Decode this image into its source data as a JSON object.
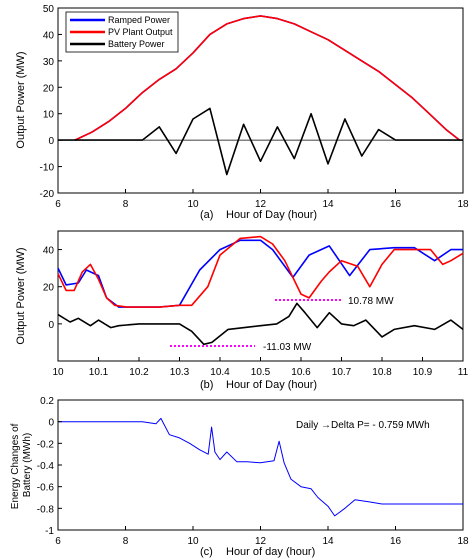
{
  "figure": {
    "caption_a": "(a)",
    "caption_b": "(b)",
    "caption_c": "(c)"
  },
  "chart_data": [
    {
      "id": "a",
      "type": "line",
      "xlabel": "Hour of Day (hour)",
      "ylabel": "Output Power (MW)",
      "xlim": [
        6,
        18
      ],
      "ylim": [
        -20,
        50
      ],
      "xticks": [
        6,
        8,
        10,
        12,
        14,
        16,
        18
      ],
      "xtick_labels": [
        "6",
        "8",
        "10",
        "12",
        "14",
        "16",
        "18"
      ],
      "yticks": [
        -20,
        -10,
        0,
        10,
        20,
        30,
        40,
        50
      ],
      "legend_position": "top-left",
      "grid": false,
      "series": [
        {
          "name": "Ramped Power",
          "color": "#0000ff",
          "x": [
            6.5,
            7,
            7.5,
            8,
            8.5,
            9,
            9.5,
            10,
            10.5,
            11,
            11.5,
            12,
            12.5,
            13,
            13.5,
            14,
            14.5,
            15,
            15.5,
            16,
            16.5,
            17,
            17.5,
            17.9
          ],
          "y": [
            0,
            3,
            7,
            12,
            18,
            23,
            27,
            33,
            40,
            44,
            46,
            47,
            46,
            44,
            41,
            38,
            34,
            30,
            26,
            21,
            16,
            10,
            4,
            0
          ]
        },
        {
          "name": "PV Plant Output",
          "color": "#ff0000",
          "x": [
            6.5,
            7,
            7.5,
            8,
            8.5,
            9,
            9.5,
            10,
            10.5,
            11,
            11.5,
            12,
            12.5,
            13,
            13.5,
            14,
            14.5,
            15,
            15.5,
            16,
            16.5,
            17,
            17.5,
            17.9
          ],
          "y": [
            0,
            3,
            7,
            12,
            18,
            23,
            27,
            33,
            40,
            44,
            46,
            47,
            46,
            44,
            41,
            38,
            34,
            30,
            26,
            21,
            16,
            10,
            4,
            0
          ]
        },
        {
          "name": "Battery Power",
          "color": "#000000",
          "x": [
            6,
            8.5,
            9,
            9.5,
            10,
            10.5,
            11,
            11.5,
            12,
            12.5,
            13,
            13.5,
            14,
            14.5,
            15,
            15.5,
            16,
            18
          ],
          "y": [
            0,
            0,
            5,
            -5,
            8,
            12,
            -13,
            6,
            -8,
            5,
            -7,
            10,
            -9,
            8,
            -6,
            4,
            0,
            0
          ]
        }
      ]
    },
    {
      "id": "b",
      "type": "line",
      "xlabel": "Hour of Day (hour)",
      "ylabel": "Output Power (MW)",
      "xlim": [
        10,
        11
      ],
      "ylim": [
        -20,
        50
      ],
      "xticks": [
        10,
        10.1,
        10.2,
        10.3,
        10.4,
        10.5,
        10.6,
        10.7,
        10.8,
        10.9,
        11
      ],
      "xtick_labels": [
        "10",
        "10.1",
        "10.2",
        "10.3",
        "10.4",
        "10.5",
        "10.6",
        "10.7",
        "10.8",
        "10.9",
        "11"
      ],
      "yticks": [
        0,
        20,
        40
      ],
      "grid": false,
      "annotations": [
        {
          "text": "10.78 MW",
          "x": 10.55,
          "y": 10.78
        },
        {
          "text": "-11.03 MW",
          "x": 10.37,
          "y": -11.03
        }
      ],
      "series": [
        {
          "color": "#0000ff",
          "x": [
            10,
            10.02,
            10.05,
            10.07,
            10.1,
            10.12,
            10.15,
            10.2,
            10.25,
            10.3,
            10.35,
            10.4,
            10.45,
            10.5,
            10.53,
            10.58,
            10.62,
            10.67,
            10.72,
            10.77,
            10.83,
            10.88,
            10.93,
            10.97,
            11
          ],
          "y": [
            30,
            21,
            22,
            29,
            26,
            14,
            9,
            9,
            9,
            10,
            29,
            40,
            45,
            45,
            40,
            25,
            37,
            42,
            26,
            40,
            41,
            41,
            34,
            40,
            40
          ]
        },
        {
          "color": "#ff0000",
          "x": [
            10,
            10.02,
            10.04,
            10.06,
            10.08,
            10.1,
            10.12,
            10.14,
            10.17,
            10.2,
            10.25,
            10.3,
            10.33,
            10.37,
            10.4,
            10.45,
            10.5,
            10.53,
            10.56,
            10.6,
            10.62,
            10.65,
            10.67,
            10.7,
            10.74,
            10.77,
            10.8,
            10.83,
            10.88,
            10.92,
            10.95,
            10.97,
            11
          ],
          "y": [
            27,
            18,
            18,
            28,
            32,
            24,
            14,
            10,
            9,
            9,
            9,
            10,
            10,
            20,
            37,
            46,
            47,
            43,
            34,
            16,
            14,
            23,
            28,
            34,
            31,
            20,
            32,
            40,
            40,
            40,
            32,
            34,
            38
          ]
        },
        {
          "color": "#000000",
          "x": [
            10,
            10.03,
            10.05,
            10.08,
            10.1,
            10.13,
            10.15,
            10.2,
            10.25,
            10.3,
            10.33,
            10.36,
            10.38,
            10.42,
            10.46,
            10.5,
            10.54,
            10.57,
            10.59,
            10.61,
            10.64,
            10.67,
            10.7,
            10.73,
            10.76,
            10.8,
            10.83,
            10.88,
            10.93,
            10.97,
            11
          ],
          "y": [
            5,
            1,
            3,
            -1,
            2,
            -2,
            -1,
            0,
            0,
            0,
            -4,
            -11,
            -10,
            -3,
            -2,
            -1,
            0,
            4,
            11,
            6,
            -2,
            6,
            0,
            -1,
            2,
            -7,
            -3,
            -1,
            -3,
            2,
            -3
          ]
        }
      ]
    },
    {
      "id": "c",
      "type": "line",
      "xlabel": "Hour of day (hour)",
      "ylabel": "Energy Changes of Battery (MWh)",
      "xlim": [
        6,
        18
      ],
      "ylim": [
        -1,
        0.2
      ],
      "xticks": [
        6,
        8,
        10,
        12,
        14,
        16,
        18
      ],
      "yticks": [
        -1,
        -0.8,
        -0.6,
        -0.4,
        -0.2,
        0,
        0.2
      ],
      "ytick_labels": [
        "-1",
        "-0.8",
        "-0.6",
        "-0.4",
        "-0.2",
        "0",
        "0.2"
      ],
      "grid": false,
      "annotation": "Daily →Delta P= - 0.759 MWh",
      "series": [
        {
          "color": "#0000ff",
          "x": [
            6,
            8.5,
            8.9,
            9.05,
            9.3,
            9.6,
            9.9,
            10.2,
            10.45,
            10.55,
            10.65,
            10.8,
            11.0,
            11.3,
            11.6,
            12.0,
            12.4,
            12.55,
            12.7,
            12.9,
            13.2,
            13.5,
            13.7,
            14.0,
            14.2,
            14.5,
            14.8,
            15.2,
            15.6,
            16.0,
            18
          ],
          "y": [
            0,
            0,
            -0.02,
            0.03,
            -0.12,
            -0.15,
            -0.2,
            -0.26,
            -0.3,
            -0.05,
            -0.28,
            -0.35,
            -0.28,
            -0.37,
            -0.37,
            -0.38,
            -0.36,
            -0.18,
            -0.38,
            -0.53,
            -0.6,
            -0.62,
            -0.7,
            -0.78,
            -0.87,
            -0.8,
            -0.72,
            -0.74,
            -0.76,
            -0.76,
            -0.76
          ]
        }
      ]
    }
  ]
}
